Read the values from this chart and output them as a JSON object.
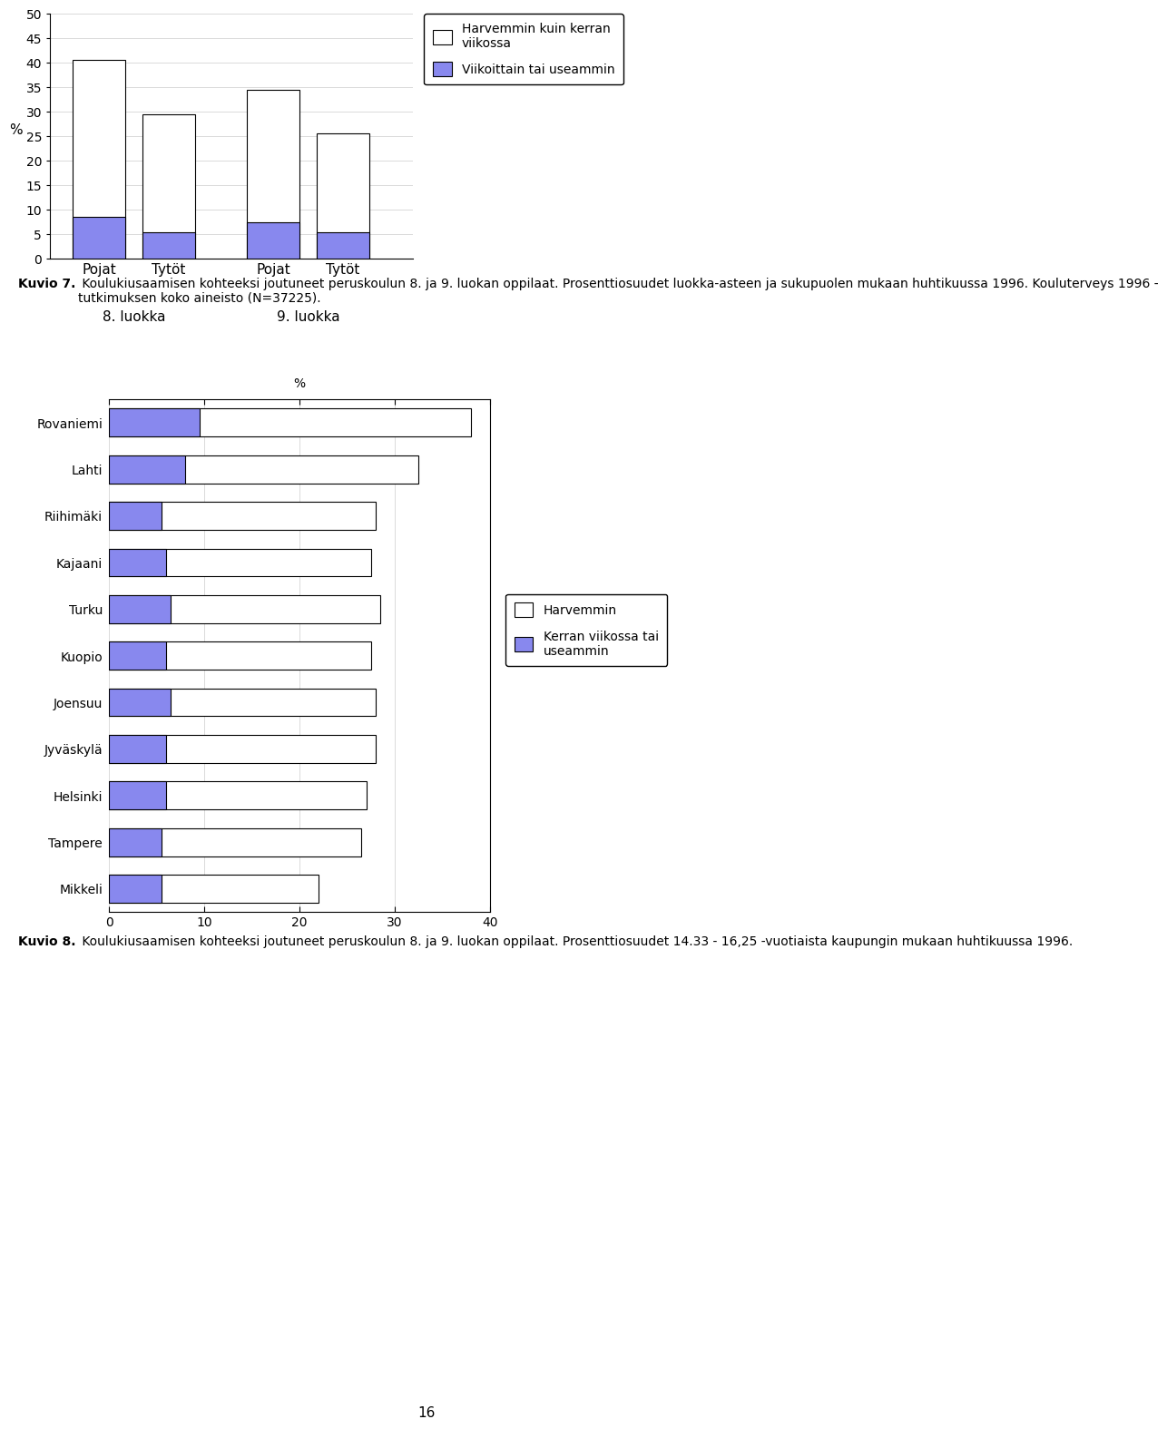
{
  "chart1": {
    "categories": [
      "Pojat",
      "Tytöt",
      "Pojat",
      "Tytöt"
    ],
    "group_labels": [
      "8. luokka",
      "9. luokka"
    ],
    "harvemmin": [
      40.5,
      29.5,
      34.5,
      25.5
    ],
    "viikoittain": [
      8.5,
      5.5,
      7.5,
      5.5
    ],
    "ylabel": "%",
    "yticks": [
      0,
      5,
      10,
      15,
      20,
      25,
      30,
      35,
      40,
      45,
      50
    ],
    "legend1": "Harvemmin kuin kerran\nviikossa",
    "legend2": "Viikoittain tai useammin",
    "bar_color_white": "#ffffff",
    "bar_color_blue": "#8888ee",
    "bar_edge": "#000000"
  },
  "chart2": {
    "cities": [
      "Rovaniemi",
      "Lahti",
      "Riihimäki",
      "Kajaani",
      "Turku",
      "Kuopio",
      "Joensuu",
      "Jyväskylä",
      "Helsinki",
      "Tampere",
      "Mikkeli"
    ],
    "harvemmin": [
      28.5,
      24.5,
      22.5,
      21.5,
      22.0,
      21.5,
      21.5,
      22.0,
      21.0,
      21.0,
      16.5
    ],
    "kerran": [
      9.5,
      8.0,
      5.5,
      6.0,
      6.5,
      6.0,
      6.5,
      6.0,
      6.0,
      5.5,
      5.5
    ],
    "xticks": [
      0,
      10,
      20,
      30,
      40
    ],
    "legend1": "Harvemmin",
    "legend2": "Kerran viikossa tai\nuseammin",
    "bar_color_white": "#ffffff",
    "bar_color_blue": "#8888ee",
    "bar_edge": "#000000"
  },
  "caption1_bold": "Kuvio 7.",
  "caption1_normal": " Koulukiusaamisen kohteeksi joutuneet peruskoulun 8. ja 9. luokan oppilaat. Prosenttiosuudet luokka-asteen ja sukupuolen mukaan huhtikuussa 1996. Kouluterveys 1996 -\ntutkimuksen koko aineisto (N=37225).",
  "caption2_bold": "Kuvio 8.",
  "caption2_normal": " Koulukiusaamisen kohteeksi joutuneet peruskoulun 8. ja 9. luokan oppilaat. Prosenttiosuudet 14.33 - 16,25 -vuotiaista kaupungin mukaan huhtikuussa 1996.",
  "page_number": "16",
  "bg_color": "#ffffff"
}
